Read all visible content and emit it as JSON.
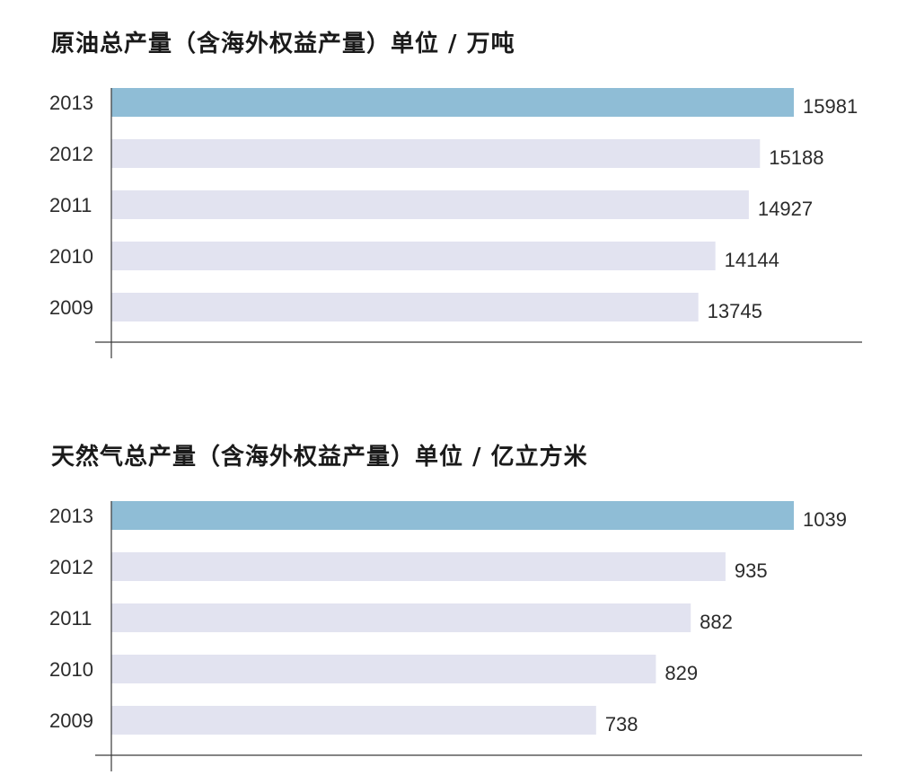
{
  "chart_data": [
    {
      "type": "bar",
      "orientation": "horizontal",
      "title": "原油总产量（含海外权益产量）单位 / 万吨",
      "categories": [
        "2013",
        "2012",
        "2011",
        "2010",
        "2009"
      ],
      "values": [
        15981,
        15188,
        14927,
        14144,
        13745
      ],
      "value_labels": [
        "15981",
        "15188",
        "14927",
        "14144",
        "13745"
      ],
      "xlim": [
        0,
        15981
      ],
      "grid": false,
      "legend": "none",
      "colors": {
        "highlight": "#8fbdd6",
        "default": "#e2e3f0"
      },
      "highlight_category": "2013"
    },
    {
      "type": "bar",
      "orientation": "horizontal",
      "title": "天然气总产量（含海外权益产量）单位 / 亿立方米",
      "categories": [
        "2013",
        "2012",
        "2011",
        "2010",
        "2009"
      ],
      "values": [
        1039,
        935,
        882,
        829,
        738
      ],
      "value_labels": [
        "1039",
        "935",
        "882",
        "829",
        "738"
      ],
      "xlim": [
        0,
        1039
      ],
      "grid": false,
      "legend": "none",
      "colors": {
        "highlight": "#8fbdd6",
        "default": "#e2e3f0"
      },
      "highlight_category": "2013"
    }
  ]
}
